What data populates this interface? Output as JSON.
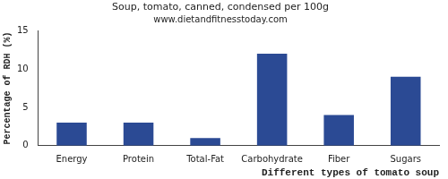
{
  "chart_data": {
    "type": "bar",
    "title": "Soup, tomato, canned, condensed per 100g",
    "subtitle": "www.dietandfitnesstoday.com",
    "x_label": "Different types of tomato soup",
    "y_label": "Percentage of RDH (%)",
    "categories": [
      "Energy",
      "Protein",
      "Total-Fat",
      "Carbohydrate",
      "Fiber",
      "Sugars"
    ],
    "values": [
      3,
      3,
      1,
      12,
      4,
      9
    ],
    "color": "#2b4a94",
    "ylim": [
      0,
      15
    ],
    "yticks": [
      0,
      5,
      10,
      15
    ],
    "grid": false
  }
}
